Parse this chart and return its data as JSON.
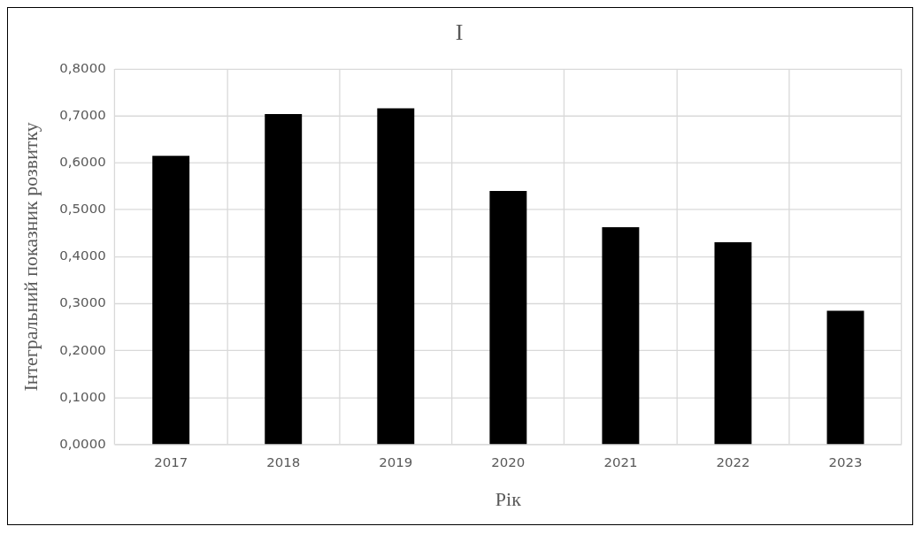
{
  "chart_data": {
    "type": "bar",
    "title": "I",
    "xlabel": "Рік",
    "ylabel": "Інтегральний показник розвитку",
    "categories": [
      "2017",
      "2018",
      "2019",
      "2020",
      "2021",
      "2022",
      "2023"
    ],
    "values": [
      0.615,
      0.704,
      0.716,
      0.54,
      0.463,
      0.431,
      0.285
    ],
    "color": "#000000",
    "ylim": [
      0,
      0.8
    ],
    "yticks": [
      {
        "value": 0,
        "label": "0,0000"
      },
      {
        "value": 0.1,
        "label": "0,1000"
      },
      {
        "value": 0.2,
        "label": "0,2000"
      },
      {
        "value": 0.3,
        "label": "0,3000"
      },
      {
        "value": 0.4,
        "label": "0,4000"
      },
      {
        "value": 0.5,
        "label": "0,5000"
      },
      {
        "value": 0.6,
        "label": "0,6000"
      },
      {
        "value": 0.7,
        "label": "0,7000"
      },
      {
        "value": 0.8,
        "label": "0,8000"
      }
    ],
    "grid": true
  }
}
